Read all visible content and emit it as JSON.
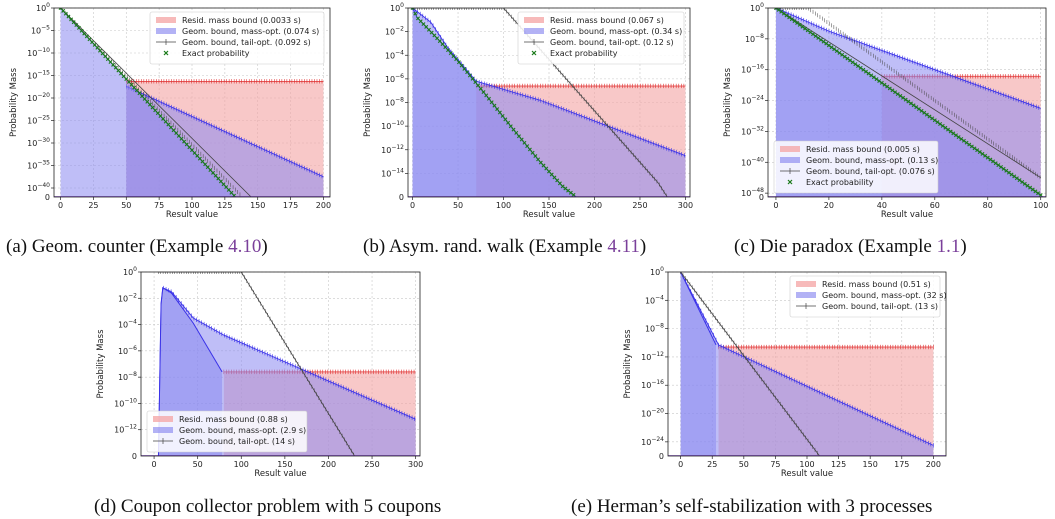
{
  "figure": {
    "captions": [
      {
        "pre": "(a) Geom. counter (Example ",
        "ref": "4.10",
        "post": ")"
      },
      {
        "pre": "(b) Asym. rand. walk (Example ",
        "ref": "4.11",
        "post": ")"
      },
      {
        "pre": "(c) Die paradox (Example ",
        "ref": "1.1",
        "post": ")"
      },
      {
        "pre": "(d) Coupon collector problem with 5 coupons",
        "ref": "",
        "post": ""
      },
      {
        "pre": "(e) Herman’s self-stabilization with 3 processes",
        "ref": "",
        "post": ""
      }
    ]
  },
  "chart_data": [
    {
      "type": "area",
      "xlabel": "Result value",
      "ylabel": "Probability Mass",
      "log_y": true,
      "xlim": [
        -5,
        205
      ],
      "ylim_exp": [
        -42,
        0
      ],
      "xticks": [
        0,
        25,
        50,
        75,
        100,
        125,
        150,
        175,
        200
      ],
      "yticks_exp": [
        0,
        -5,
        -10,
        -15,
        -20,
        -25,
        -30,
        -35,
        -40
      ],
      "has_zero_tick": true,
      "grid": true,
      "legend_position": "upper-right",
      "series": [
        {
          "name": "Resid. mass bound (0.0033 s)",
          "kind": "resid",
          "color": "#f4a3a3",
          "points": [
            [
              50,
              -16.3
            ],
            [
              200,
              -16.3
            ]
          ]
        },
        {
          "name": "Geom. bound, mass-opt. (0.074 s)",
          "kind": "mass",
          "color": "#6b63f2",
          "points": [
            [
              50,
              -17.4
            ],
            [
              200,
              -37.5
            ]
          ]
        },
        {
          "name": "Geom. bound, tail-opt. (0.092 s)",
          "kind": "tail",
          "color": "#555555",
          "points": [
            [
              0,
              0
            ],
            [
              145,
              -44
            ]
          ]
        },
        {
          "name": "Exact probability",
          "kind": "exact",
          "color": "#1a7a1a",
          "points": [
            [
              0,
              0
            ],
            [
              133,
              -42
            ]
          ]
        }
      ],
      "exact_step": 2
    },
    {
      "type": "area",
      "xlabel": "Result value",
      "ylabel": "Probability Mass",
      "log_y": true,
      "xlim": [
        -5,
        305
      ],
      "ylim_exp": [
        -16,
        0
      ],
      "xticks": [
        0,
        50,
        100,
        150,
        200,
        250,
        300
      ],
      "yticks_exp": [
        0,
        -2,
        -4,
        -6,
        -8,
        -10,
        -12,
        -14
      ],
      "has_zero_tick": true,
      "grid": true,
      "legend_position": "upper-right",
      "series": [
        {
          "name": "Resid. mass bound (0.067 s)",
          "kind": "resid",
          "color": "#f4a3a3",
          "points": [
            [
              70,
              -6.6
            ],
            [
              300,
              -6.6
            ]
          ]
        },
        {
          "name": "Geom. bound, mass-opt. (0.34 s)",
          "kind": "mass",
          "color": "#6b63f2",
          "points": [
            [
              0,
              0
            ],
            [
              20,
              -1.2
            ],
            [
              40,
              -3.5
            ],
            [
              70,
              -6.2
            ],
            [
              140,
              -7.8
            ],
            [
              300,
              -12.5
            ]
          ]
        },
        {
          "name": "Geom. bound, tail-opt. (0.12 s)",
          "kind": "tail",
          "color": "#555555",
          "points": [
            [
              0,
              0
            ],
            [
              100,
              0
            ],
            [
              270,
              -14.8
            ],
            [
              280,
              -16
            ]
          ]
        },
        {
          "name": "Exact probability",
          "kind": "exact",
          "color": "#1a7a1a",
          "points": [
            [
              0,
              0
            ],
            [
              5,
              -0.8
            ],
            [
              15,
              -1.6
            ],
            [
              30,
              -2.8
            ],
            [
              50,
              -4.5
            ],
            [
              80,
              -7.3
            ],
            [
              110,
              -10.2
            ],
            [
              140,
              -13
            ],
            [
              165,
              -15.1
            ],
            [
              180,
              -16
            ]
          ]
        }
      ],
      "exact_step": 3
    },
    {
      "type": "area",
      "xlabel": "Result value",
      "ylabel": "Probability Mass",
      "log_y": true,
      "xlim": [
        -3,
        102
      ],
      "ylim_exp": [
        -49,
        0
      ],
      "xticks": [
        0,
        20,
        40,
        60,
        80,
        100
      ],
      "yticks_exp": [
        0,
        -8,
        -16,
        -24,
        -32,
        -40,
        -48
      ],
      "has_zero_tick": true,
      "grid": true,
      "legend_position": "lower-left",
      "series": [
        {
          "name": "Resid. mass bound (0.005 s)",
          "kind": "resid",
          "color": "#f4a3a3",
          "points": [
            [
              40,
              -17.7
            ],
            [
              100,
              -17.7
            ]
          ]
        },
        {
          "name": "Geom. bound, mass-opt. (0.13 s)",
          "kind": "mass",
          "color": "#6b63f2",
          "points": [
            [
              0,
              0
            ],
            [
              20,
              -6
            ],
            [
              40,
              -11
            ],
            [
              100,
              -26
            ]
          ]
        },
        {
          "name": "Geom. bound, tail-opt. (0.076 s)",
          "kind": "tail",
          "color": "#555555",
          "points": [
            [
              0,
              6
            ],
            [
              100,
              -44
            ]
          ]
        },
        {
          "name": "Exact probability",
          "kind": "exact",
          "color": "#1a7a1a",
          "points": [
            [
              0,
              0
            ],
            [
              100,
              -48.5
            ]
          ]
        }
      ],
      "exact_step": 1
    },
    {
      "type": "area",
      "xlabel": "Result value",
      "ylabel": "Probability Mass",
      "log_y": true,
      "xlim": [
        -15,
        305
      ],
      "ylim_exp": [
        -14,
        0
      ],
      "xticks": [
        0,
        50,
        100,
        150,
        200,
        250,
        300
      ],
      "yticks_exp": [
        0,
        -2,
        -4,
        -6,
        -8,
        -10,
        -12
      ],
      "has_zero_tick": true,
      "grid": true,
      "legend_position": "lower-left",
      "series": [
        {
          "name": "Resid. mass bound (0.88 s)",
          "kind": "resid",
          "color": "#f4a3a3",
          "points": [
            [
              80,
              -7.6
            ],
            [
              300,
              -7.6
            ]
          ]
        },
        {
          "name": "Geom. bound, mass-opt. (2.9 s)",
          "kind": "mass",
          "color": "#6b63f2",
          "points": [
            [
              5,
              -14
            ],
            [
              8,
              -2.5
            ],
            [
              10,
              -1.2
            ],
            [
              20,
              -1.5
            ],
            [
              45,
              -3.5
            ],
            [
              80,
              -4.8
            ],
            [
              300,
              -11.2
            ]
          ]
        },
        {
          "name": "Geom. bound, tail-opt. (14 s)",
          "kind": "tail",
          "color": "#555555",
          "points": [
            [
              5,
              0
            ],
            [
              100,
              0
            ],
            [
              230,
              -14
            ]
          ]
        }
      ],
      "exact": [
        [
          5,
          -14
        ],
        [
          8,
          -2.4
        ],
        [
          10,
          -1.2
        ],
        [
          20,
          -1.6
        ],
        [
          45,
          -3.9
        ],
        [
          78,
          -7.6
        ]
      ]
    },
    {
      "type": "area",
      "xlabel": "Result value",
      "ylabel": "Probability Mass",
      "log_y": true,
      "xlim": [
        -10,
        210
      ],
      "ylim_exp": [
        -26,
        0
      ],
      "xticks": [
        0,
        25,
        50,
        75,
        100,
        125,
        150,
        175,
        200
      ],
      "yticks_exp": [
        0,
        -4,
        -8,
        -12,
        -16,
        -20,
        -24
      ],
      "has_zero_tick": true,
      "grid": true,
      "legend_position": "upper-right",
      "series": [
        {
          "name": "Resid. mass bound (0.51 s)",
          "kind": "resid",
          "color": "#f4a3a3",
          "points": [
            [
              30,
              -10.6
            ],
            [
              200,
              -10.6
            ]
          ]
        },
        {
          "name": "Geom. bound, mass-opt. (32 s)",
          "kind": "mass",
          "color": "#6b63f2",
          "points": [
            [
              0,
              0
            ],
            [
              28,
              -9.6
            ],
            [
              30,
              -10.3
            ],
            [
              200,
              -24.5
            ]
          ]
        },
        {
          "name": "Geom. bound, tail-opt. (13 s)",
          "kind": "tail",
          "color": "#555555",
          "points": [
            [
              0,
              0
            ],
            [
              110,
              -26
            ]
          ]
        }
      ],
      "exact": [
        [
          0,
          0
        ],
        [
          28,
          -10.3
        ]
      ]
    }
  ]
}
